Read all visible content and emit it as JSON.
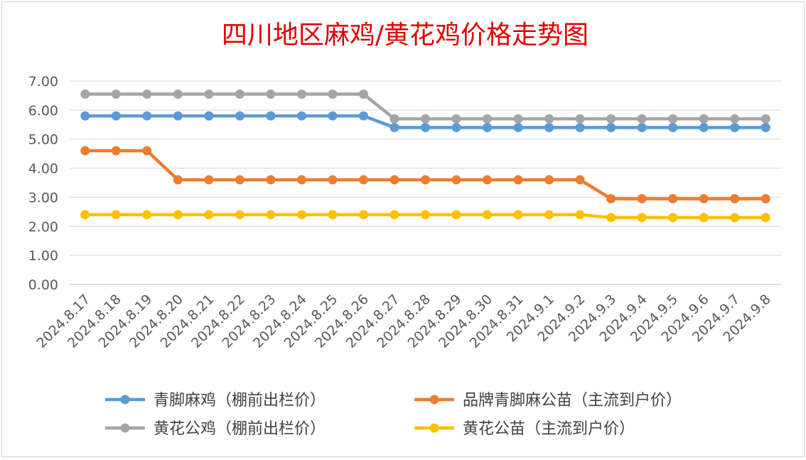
{
  "chart_data": {
    "type": "line",
    "title": "四川地区麻鸡/黄花鸡价格走势图",
    "xlabel": "",
    "ylabel": "",
    "ylim": [
      0,
      7
    ],
    "y_ticks": [
      "0.00",
      "1.00",
      "2.00",
      "3.00",
      "4.00",
      "5.00",
      "6.00",
      "7.00"
    ],
    "grid": true,
    "legend_position": "bottom",
    "categories": [
      "2024.8.17",
      "2024.8.18",
      "2024.8.19",
      "2024.8.20",
      "2024.8.21",
      "2024.8.22",
      "2024.8.23",
      "2024.8.24",
      "2024.8.25",
      "2024.8.26",
      "2024.8.27",
      "2024.8.28",
      "2024.8.29",
      "2024.8.30",
      "2024.8.31",
      "2024.9.1",
      "2024.9.2",
      "2024.9.3",
      "2024.9.4",
      "2024.9.5",
      "2024.9.6",
      "2024.9.7",
      "2024.9.8"
    ],
    "series": [
      {
        "name": "青脚麻鸡（棚前出栏价）",
        "color": "#5b9bd5",
        "values": [
          5.8,
          5.8,
          5.8,
          5.8,
          5.8,
          5.8,
          5.8,
          5.8,
          5.8,
          5.8,
          5.4,
          5.4,
          5.4,
          5.4,
          5.4,
          5.4,
          5.4,
          5.4,
          5.4,
          5.4,
          5.4,
          5.4,
          5.4
        ]
      },
      {
        "name": "品牌青脚麻公苗（主流到户价）",
        "color": "#ed7d31",
        "values": [
          4.6,
          4.6,
          4.6,
          3.6,
          3.6,
          3.6,
          3.6,
          3.6,
          3.6,
          3.6,
          3.6,
          3.6,
          3.6,
          3.6,
          3.6,
          3.6,
          3.6,
          2.95,
          2.95,
          2.95,
          2.95,
          2.95,
          2.95
        ]
      },
      {
        "name": "黄花公鸡（棚前出栏价）",
        "color": "#a5a5a5",
        "values": [
          6.55,
          6.55,
          6.55,
          6.55,
          6.55,
          6.55,
          6.55,
          6.55,
          6.55,
          6.55,
          5.7,
          5.7,
          5.7,
          5.7,
          5.7,
          5.7,
          5.7,
          5.7,
          5.7,
          5.7,
          5.7,
          5.7,
          5.7
        ]
      },
      {
        "name": "黄花公苗（主流到户价）",
        "color": "#ffc000",
        "values": [
          2.4,
          2.4,
          2.4,
          2.4,
          2.4,
          2.4,
          2.4,
          2.4,
          2.4,
          2.4,
          2.4,
          2.4,
          2.4,
          2.4,
          2.4,
          2.4,
          2.4,
          2.3,
          2.3,
          2.3,
          2.3,
          2.3,
          2.3
        ]
      }
    ],
    "title_color": "#e00000"
  }
}
